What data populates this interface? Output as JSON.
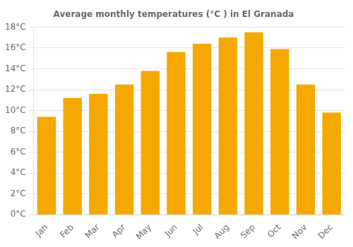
{
  "chart_data": {
    "type": "bar",
    "title": "Average monthly temperatures (°C ) in El Granada",
    "categories": [
      "Jan",
      "Feb",
      "Mar",
      "Apr",
      "May",
      "Jun",
      "Jul",
      "Aug",
      "Sep",
      "Oct",
      "Nov",
      "Dec"
    ],
    "values": [
      9.4,
      11.2,
      11.6,
      12.5,
      13.8,
      15.6,
      16.4,
      17.0,
      17.5,
      15.9,
      12.5,
      9.8
    ],
    "color": "#F5A800",
    "ylim": [
      0,
      18
    ],
    "yticks": [
      {
        "value": 0,
        "label": "0°C"
      },
      {
        "value": 2,
        "label": "2°C"
      },
      {
        "value": 4,
        "label": "4°C"
      },
      {
        "value": 6,
        "label": "6°C"
      },
      {
        "value": 8,
        "label": "8°C"
      },
      {
        "value": 10,
        "label": "10°C"
      },
      {
        "value": 12,
        "label": "12°C"
      },
      {
        "value": 14,
        "label": "14°C"
      },
      {
        "value": 16,
        "label": "16°C"
      },
      {
        "value": 18,
        "label": "18°C"
      }
    ],
    "grid": true
  }
}
